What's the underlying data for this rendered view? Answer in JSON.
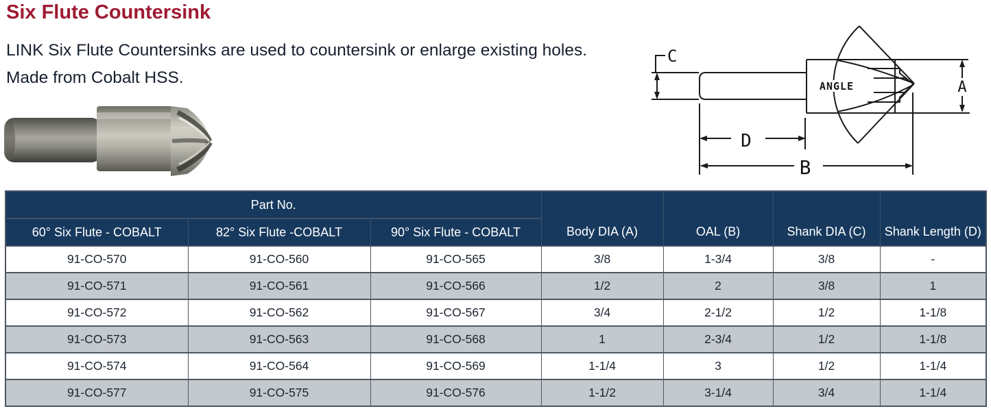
{
  "page": {
    "title": "Six Flute Countersink",
    "description_line1": "LINK Six Flute Countersinks are used to countersink or enlarge existing holes.",
    "description_line2": "Made from Cobalt HSS."
  },
  "diagram": {
    "dim_a": "A",
    "dim_b": "B",
    "dim_c": "C",
    "dim_d": "D",
    "angle_label": "ANGLE"
  },
  "table": {
    "group_header": "Part No.",
    "part_columns": [
      "60° Six Flute - COBALT",
      "82° Six Flute -COBALT",
      "90° Six Flute - COBALT"
    ],
    "spec_columns": [
      "Body DIA (A)",
      "OAL (B)",
      "Shank DIA (C)",
      "Shank Length (D)"
    ],
    "rows": [
      [
        "91-CO-570",
        "91-CO-560",
        "91-CO-565",
        "3/8",
        "1-3/4",
        "3/8",
        "-"
      ],
      [
        "91-CO-571",
        "91-CO-561",
        "91-CO-566",
        "1/2",
        "2",
        "3/8",
        "1"
      ],
      [
        "91-CO-572",
        "91-CO-562",
        "91-CO-567",
        "3/4",
        "2-1/2",
        "1/2",
        "1-1/8"
      ],
      [
        "91-CO-573",
        "91-CO-563",
        "91-CO-568",
        "1",
        "2-3/4",
        "1/2",
        "1-1/8"
      ],
      [
        "91-CO-574",
        "91-CO-564",
        "91-CO-569",
        "1-1/4",
        "3",
        "1/2",
        "1-1/4"
      ],
      [
        "91-CO-577",
        "91-CO-575",
        "91-CO-576",
        "1-1/2",
        "3-1/4",
        "3/4",
        "1-1/4"
      ]
    ]
  },
  "colors": {
    "title": "#9e1b32",
    "body_text": "#16202e",
    "table_header_bg": "#17395e",
    "table_alt_row_bg": "#c4c9ce",
    "table_border": "#4d5661"
  }
}
